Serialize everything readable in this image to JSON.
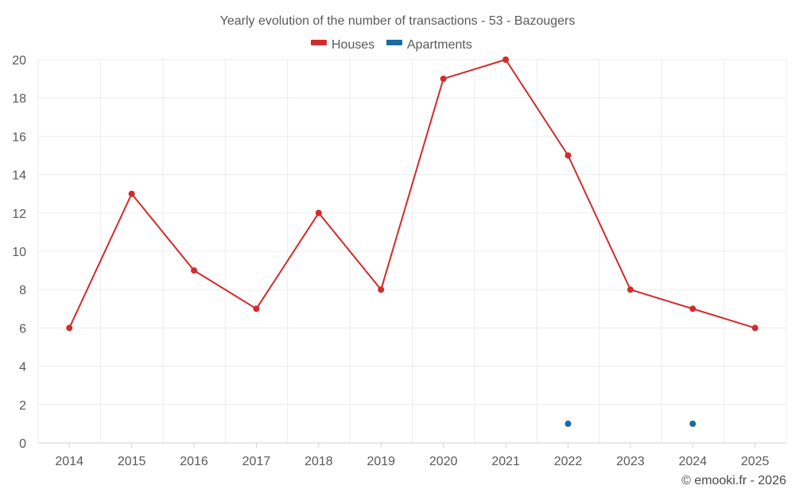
{
  "chart_data": {
    "type": "line",
    "title": "Yearly evolution of the number of transactions - 53 - Bazougers",
    "categories": [
      "2014",
      "2015",
      "2016",
      "2017",
      "2018",
      "2019",
      "2020",
      "2021",
      "2022",
      "2023",
      "2024",
      "2025"
    ],
    "ylim": [
      0,
      20
    ],
    "yticks": [
      0,
      2,
      4,
      6,
      8,
      10,
      12,
      14,
      16,
      18,
      20
    ],
    "grid": true,
    "legend_position": "top-center",
    "series": [
      {
        "name": "Houses",
        "color": "#d42a2a",
        "values": [
          6,
          13,
          9,
          7,
          12,
          8,
          19,
          20,
          15,
          8,
          7,
          6
        ]
      },
      {
        "name": "Apartments",
        "color": "#1a6aa3",
        "values": [
          null,
          null,
          null,
          null,
          null,
          null,
          null,
          null,
          1,
          null,
          1,
          null
        ]
      }
    ]
  },
  "credit": "© emooki.fr - 2026"
}
